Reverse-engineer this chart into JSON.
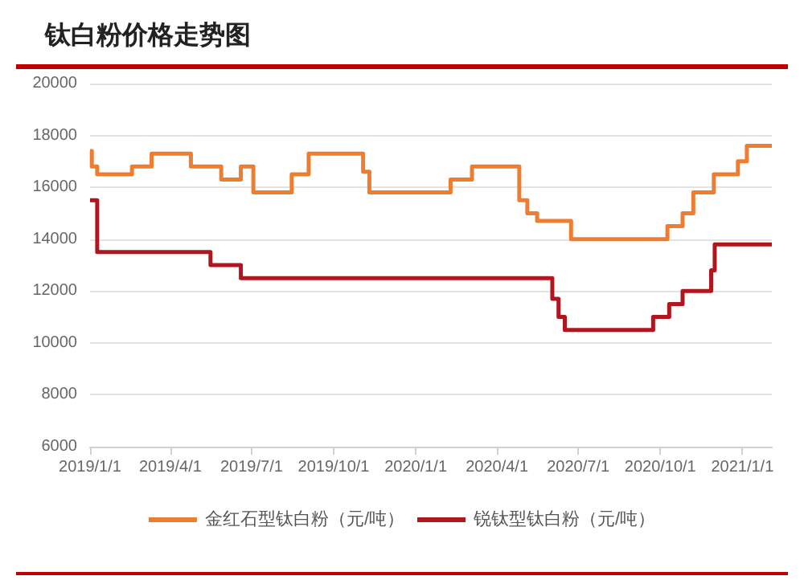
{
  "chart_data": {
    "type": "step",
    "title": "钛白粉价格走势图",
    "series": [
      {
        "name": "金红石型钛白粉（元/吨）",
        "color": "#ed7d31",
        "x": [
          "2019-01-01",
          "2019-01-03",
          "2019-01-09",
          "2019-02-17",
          "2019-03-11",
          "2019-04-24",
          "2019-05-28",
          "2019-06-19",
          "2019-07-03",
          "2019-08-15",
          "2019-09-03",
          "2019-11-03",
          "2019-11-10",
          "2020-02-09",
          "2020-03-04",
          "2020-04-26",
          "2020-05-05",
          "2020-05-16",
          "2020-06-23",
          "2020-10-09",
          "2020-10-26",
          "2020-11-07",
          "2020-11-30",
          "2020-12-27",
          "2021-01-06",
          "2021-02-03"
        ],
        "values": [
          17400,
          16800,
          16500,
          16800,
          17300,
          16800,
          16300,
          16800,
          15800,
          16500,
          17300,
          16600,
          15800,
          16300,
          16800,
          15500,
          15000,
          14700,
          14000,
          14500,
          15000,
          15800,
          16500,
          17000,
          17600,
          17600
        ]
      },
      {
        "name": "锐钛型钛白粉（元/吨）",
        "color": "#b0161e",
        "x": [
          "2019-01-01",
          "2019-01-09",
          "2019-05-16",
          "2019-06-19",
          "2020-06-02",
          "2020-06-09",
          "2020-06-16",
          "2020-09-23",
          "2020-10-11",
          "2020-10-26",
          "2020-11-27",
          "2020-12-01",
          "2021-02-03"
        ],
        "values": [
          15500,
          13500,
          13000,
          12500,
          11700,
          11000,
          10500,
          11000,
          11500,
          12000,
          12800,
          13800,
          13800
        ]
      }
    ],
    "xlim": [
      "2019-01-01",
      "2021-02-03"
    ],
    "xticks": [
      {
        "value": "2019-01-01",
        "label": "2019/1/1"
      },
      {
        "value": "2019-04-01",
        "label": "2019/4/1"
      },
      {
        "value": "2019-07-01",
        "label": "2019/7/1"
      },
      {
        "value": "2019-10-01",
        "label": "2019/10/1"
      },
      {
        "value": "2020-01-01",
        "label": "2020/1/1"
      },
      {
        "value": "2020-04-01",
        "label": "2020/4/1"
      },
      {
        "value": "2020-07-01",
        "label": "2020/7/1"
      },
      {
        "value": "2020-10-01",
        "label": "2020/10/1"
      },
      {
        "value": "2021-01-01",
        "label": "2021/1/1"
      }
    ],
    "ylim": [
      6000,
      20000
    ],
    "yticks": [
      6000,
      8000,
      10000,
      12000,
      14000,
      16000,
      18000,
      20000
    ],
    "grid": "y",
    "legend": "bottom",
    "line_style": "solid",
    "marker": "none"
  }
}
